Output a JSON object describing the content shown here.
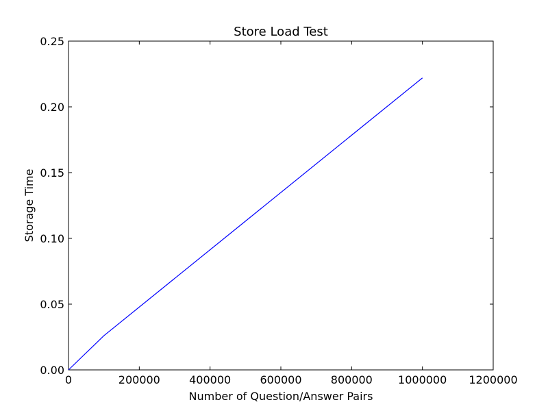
{
  "chart_data": {
    "type": "line",
    "title": "Store Load Test",
    "xlabel": "Number of Question/Answer Pairs",
    "ylabel": "Storage Time",
    "xlim": [
      0,
      1200000
    ],
    "ylim": [
      0.0,
      0.25
    ],
    "xticks": [
      "0",
      "200000",
      "400000",
      "600000",
      "800000",
      "1000000",
      "1200000"
    ],
    "yticks": [
      "0.00",
      "0.05",
      "0.10",
      "0.15",
      "0.20",
      "0.25"
    ],
    "grid": false,
    "series": [
      {
        "color": "#0000ff",
        "x": [
          0,
          100000,
          1000000
        ],
        "y": [
          0.0,
          0.026,
          0.222
        ]
      }
    ]
  }
}
